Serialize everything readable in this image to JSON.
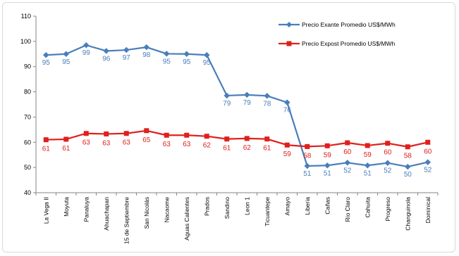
{
  "chart_data": {
    "type": "line",
    "title": "",
    "xlabel": "",
    "ylabel": "",
    "ylim": [
      40,
      110
    ],
    "yticks": [
      40,
      50,
      60,
      70,
      80,
      90,
      100,
      110
    ],
    "grid": false,
    "legend_position": "top-right",
    "categories": [
      "La Vega II",
      "Moyuta",
      "Panaluya",
      "Ahuachapan",
      "15 de Septiembre",
      "San Nicolás",
      "Nacaome",
      "Aguas Calientes",
      "Prados",
      "Sandino",
      "Leon 1",
      "Ticuantepe",
      "Amayo",
      "Liberia",
      "Cañas",
      "Rio Claro",
      "Cahuita",
      "Progreso",
      "Changuinola",
      "Dominical"
    ],
    "series": [
      {
        "name": "Precio Exante Promedio US$/MWh",
        "color": "#4a7ebb",
        "marker": "diamond",
        "values": [
          94.6,
          95.0,
          98.5,
          96.2,
          96.6,
          97.7,
          95.1,
          95.0,
          94.6,
          78.5,
          78.8,
          78.4,
          75.8,
          50.6,
          50.8,
          51.9,
          50.8,
          51.8,
          50.3,
          52.1
        ],
        "labels": [
          "95",
          "95",
          "99",
          "96",
          "97",
          "98",
          "95",
          "95",
          "95",
          "79",
          "79",
          "78",
          "76",
          "51",
          "51",
          "52",
          "51",
          "52",
          "50",
          "52"
        ]
      },
      {
        "name": "Precio Expost Promedio US$/MWh",
        "color": "#e0201c",
        "label_color": "#e0201c",
        "marker": "square",
        "values": [
          61.0,
          61.2,
          63.5,
          63.3,
          63.5,
          64.6,
          62.8,
          62.8,
          62.4,
          61.3,
          61.5,
          61.3,
          58.9,
          58.3,
          58.6,
          59.8,
          58.7,
          59.6,
          58.2,
          60.0
        ],
        "labels": [
          "61",
          "61",
          "63",
          "63",
          "63",
          "65",
          "63",
          "63",
          "62",
          "61",
          "62",
          "61",
          "59",
          "58",
          "59",
          "60",
          "59",
          "60",
          "58",
          "60"
        ]
      }
    ]
  }
}
